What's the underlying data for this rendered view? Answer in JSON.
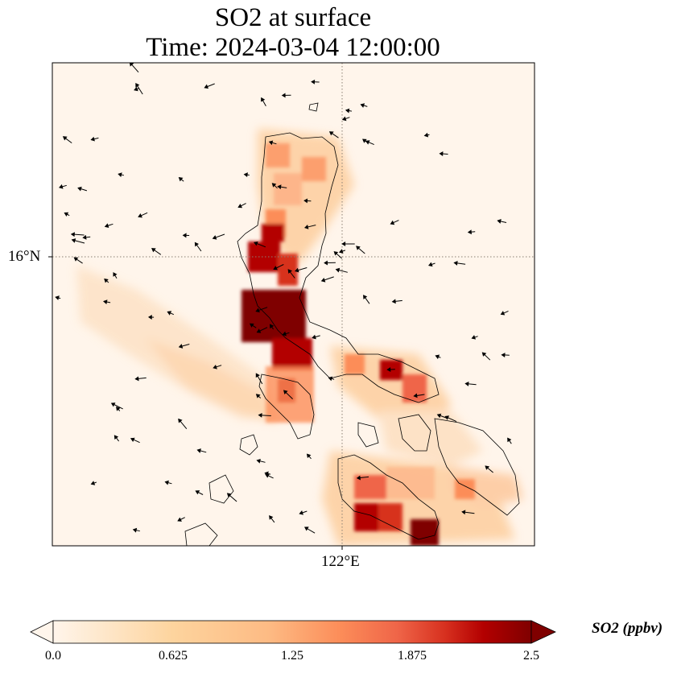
{
  "title": {
    "line1": "SO2 at surface",
    "line2": "Time: 2024-03-04 12:00:00"
  },
  "axes": {
    "lat_label": "16°N",
    "lon_label": "122°E"
  },
  "colorbar": {
    "label": "SO2 (ppbv)",
    "ticks": [
      "0.0",
      "0.625",
      "1.25",
      "1.875",
      "2.5"
    ],
    "min": 0.0,
    "max": 2.5,
    "colors": [
      "#fff5eb",
      "#fdd49e",
      "#fdbb84",
      "#fc8d59",
      "#ef6548",
      "#d7301f",
      "#b30000",
      "#7f0000"
    ]
  },
  "map": {
    "background_color": "#fff5eb",
    "coastline_color": "#000000",
    "gridline_color": "#8a7f73",
    "hotspot_color": "#7f0000"
  }
}
